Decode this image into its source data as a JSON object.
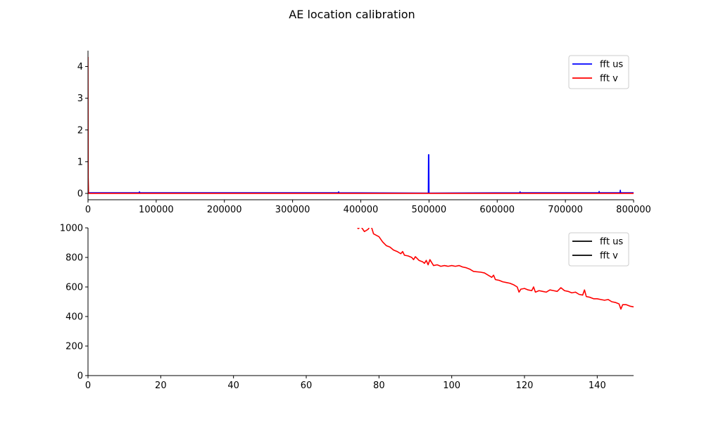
{
  "figure": {
    "title": "AE location calibration"
  },
  "chart_data": [
    {
      "type": "line",
      "title": "",
      "xlabel": "",
      "ylabel": "",
      "xlim": [
        0,
        800000
      ],
      "ylim": [
        -0.2,
        4.5
      ],
      "xticks": [
        0,
        100000,
        200000,
        300000,
        400000,
        500000,
        600000,
        700000,
        800000
      ],
      "yticks": [
        0,
        1,
        2,
        3,
        4
      ],
      "grid": false,
      "legend_position": "upper right",
      "series": [
        {
          "name": "fft us",
          "color": "#0000ff",
          "points": [
            [
              0,
              0.02
            ],
            [
              75000,
              0.02
            ],
            [
              75500,
              0.05
            ],
            [
              76000,
              0.02
            ],
            [
              367000,
              0.02
            ],
            [
              367500,
              0.05
            ],
            [
              368000,
              0.02
            ],
            [
              499000,
              0.01
            ],
            [
              499300,
              1.22
            ],
            [
              499700,
              1.22
            ],
            [
              500000,
              0.01
            ],
            [
              633000,
              0.02
            ],
            [
              633500,
              0.05
            ],
            [
              634000,
              0.02
            ],
            [
              749000,
              0.02
            ],
            [
              749500,
              0.06
            ],
            [
              750000,
              0.02
            ],
            [
              780000,
              0.02
            ],
            [
              780500,
              0.1
            ],
            [
              781000,
              0.02
            ],
            [
              800000,
              0.02
            ]
          ]
        },
        {
          "name": "fft v",
          "color": "#ff0000",
          "points": [
            [
              0,
              4.3
            ],
            [
              300,
              0.5
            ],
            [
              800,
              0.0
            ],
            [
              800000,
              0.0
            ]
          ]
        }
      ]
    },
    {
      "type": "line",
      "title": "",
      "xlabel": "",
      "ylabel": "",
      "xlim": [
        0,
        150
      ],
      "ylim": [
        0,
        1000
      ],
      "xticks": [
        0,
        20,
        40,
        60,
        80,
        100,
        120,
        140
      ],
      "yticks": [
        0,
        200,
        400,
        600,
        800,
        1000
      ],
      "grid": false,
      "legend_position": "upper right",
      "legend_entries": [
        {
          "name": "fft us",
          "color": "#000000"
        },
        {
          "name": "fft v",
          "color": "#000000"
        }
      ],
      "series": [
        {
          "name": "fft v",
          "color": "#ff0000",
          "points": [
            [
              74,
              1005
            ],
            [
              74.3,
              995
            ],
            [
              75,
              1010
            ],
            [
              76,
              975
            ],
            [
              77,
              990
            ],
            [
              77.5,
              1010
            ],
            [
              78,
              1000
            ],
            [
              78.5,
              960
            ],
            [
              80,
              940
            ],
            [
              81,
              905
            ],
            [
              82,
              880
            ],
            [
              83,
              870
            ],
            [
              84,
              850
            ],
            [
              85,
              840
            ],
            [
              86,
              825
            ],
            [
              86.5,
              840
            ],
            [
              87,
              815
            ],
            [
              88,
              810
            ],
            [
              89,
              800
            ],
            [
              89.5,
              785
            ],
            [
              90,
              805
            ],
            [
              91,
              780
            ],
            [
              92,
              770
            ],
            [
              92.5,
              760
            ],
            [
              93,
              780
            ],
            [
              93.5,
              750
            ],
            [
              94,
              785
            ],
            [
              95,
              745
            ],
            [
              96,
              750
            ],
            [
              97,
              740
            ],
            [
              98,
              745
            ],
            [
              99,
              740
            ],
            [
              100,
              745
            ],
            [
              101,
              740
            ],
            [
              102,
              745
            ],
            [
              103,
              735
            ],
            [
              104,
              730
            ],
            [
              105,
              720
            ],
            [
              106,
              705
            ],
            [
              108,
              700
            ],
            [
              109,
              695
            ],
            [
              110,
              680
            ],
            [
              111,
              665
            ],
            [
              111.5,
              680
            ],
            [
              112,
              650
            ],
            [
              113,
              645
            ],
            [
              114,
              635
            ],
            [
              115,
              630
            ],
            [
              116,
              625
            ],
            [
              117,
              615
            ],
            [
              118,
              600
            ],
            [
              118.5,
              565
            ],
            [
              119,
              585
            ],
            [
              120,
              590
            ],
            [
              121,
              580
            ],
            [
              122,
              575
            ],
            [
              122.5,
              600
            ],
            [
              123,
              565
            ],
            [
              124,
              575
            ],
            [
              125,
              570
            ],
            [
              126,
              565
            ],
            [
              127,
              580
            ],
            [
              128,
              575
            ],
            [
              129,
              570
            ],
            [
              130,
              595
            ],
            [
              131,
              575
            ],
            [
              132,
              570
            ],
            [
              133,
              560
            ],
            [
              134,
              565
            ],
            [
              135,
              550
            ],
            [
              136,
              545
            ],
            [
              136.5,
              580
            ],
            [
              137,
              535
            ],
            [
              138,
              530
            ],
            [
              139,
              520
            ],
            [
              140,
              520
            ],
            [
              141,
              515
            ],
            [
              142,
              510
            ],
            [
              143,
              515
            ],
            [
              144,
              500
            ],
            [
              145,
              495
            ],
            [
              146,
              485
            ],
            [
              146.5,
              450
            ],
            [
              147,
              480
            ],
            [
              148,
              480
            ],
            [
              149,
              470
            ],
            [
              150,
              465
            ]
          ]
        }
      ]
    }
  ]
}
